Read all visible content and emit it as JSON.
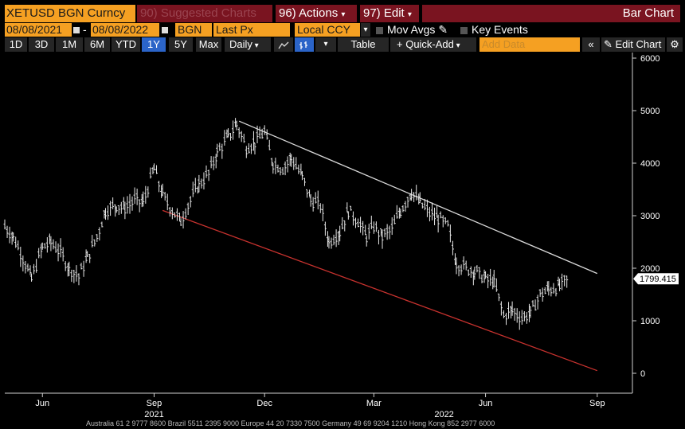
{
  "header": {
    "security": "XETUSD BGN Curncy",
    "suggested": "90) Suggested Charts",
    "actions": "96) Actions",
    "edit": "97) Edit",
    "title": "Bar Chart"
  },
  "params": {
    "start_date": "08/08/2021",
    "end_date": "08/08/2022",
    "source": "BGN",
    "field": "Last Px",
    "currency": "Local CCY",
    "mov_avgs": "Mov Avgs",
    "key_events": "Key Events"
  },
  "toolbar": {
    "ranges": [
      "1D",
      "3D",
      "1M",
      "6M",
      "YTD",
      "1Y",
      "5Y",
      "Max"
    ],
    "selected_range": "1Y",
    "frequency": "Daily",
    "table": "Table",
    "quick_add": "+ Quick-Add",
    "add_data_placeholder": "Add Data",
    "edit_chart": "Edit Chart"
  },
  "footer": "Australia 61 2 9777 8600  Brazil 5511 2395 9000  Europe 44 20 7330 7500  Germany 49 69 9204 1210  Hong Kong 852 2977 6000",
  "colors": {
    "amber": "#f5a022",
    "maroon": "#7a1420",
    "upper_trend": "#d8d8d8",
    "lower_trend": "#c8322e"
  },
  "chart_data": {
    "type": "bar",
    "ylim": [
      0,
      6000
    ],
    "yticks": [
      0,
      1000,
      2000,
      3000,
      4000,
      5000,
      6000
    ],
    "xlabels": [
      "Jun",
      "Sep",
      "Dec",
      "Mar",
      "Jun",
      "Sep"
    ],
    "year_labels": [
      "2021",
      "2022"
    ],
    "last_value_label": "1799.415",
    "last_value": 1799.415,
    "trendlines": [
      {
        "from": [
          "2021-11-10",
          4800
        ],
        "to": [
          "2022-09-01",
          1900
        ]
      },
      {
        "from": [
          "2021-09-08",
          3100
        ],
        "to": [
          "2022-09-01",
          50
        ]
      }
    ],
    "series": [
      {
        "x": "2021-05-01",
        "y": 2800
      },
      {
        "x": "2021-05-08",
        "y": 2600
      },
      {
        "x": "2021-05-16",
        "y": 2200
      },
      {
        "x": "2021-05-23",
        "y": 1800
      },
      {
        "x": "2021-06-01",
        "y": 2400
      },
      {
        "x": "2021-06-08",
        "y": 2500
      },
      {
        "x": "2021-06-16",
        "y": 2300
      },
      {
        "x": "2021-06-23",
        "y": 2000
      },
      {
        "x": "2021-07-01",
        "y": 1850
      },
      {
        "x": "2021-07-08",
        "y": 2200
      },
      {
        "x": "2021-07-16",
        "y": 2600
      },
      {
        "x": "2021-07-23",
        "y": 3100
      },
      {
        "x": "2021-08-01",
        "y": 3200
      },
      {
        "x": "2021-08-08",
        "y": 3150
      },
      {
        "x": "2021-08-16",
        "y": 3300
      },
      {
        "x": "2021-08-23",
        "y": 3250
      },
      {
        "x": "2021-09-01",
        "y": 3900
      },
      {
        "x": "2021-09-08",
        "y": 3400
      },
      {
        "x": "2021-09-16",
        "y": 3100
      },
      {
        "x": "2021-09-23",
        "y": 2900
      },
      {
        "x": "2021-10-01",
        "y": 3300
      },
      {
        "x": "2021-10-08",
        "y": 3600
      },
      {
        "x": "2021-10-16",
        "y": 3800
      },
      {
        "x": "2021-10-23",
        "y": 4200
      },
      {
        "x": "2021-11-01",
        "y": 4500
      },
      {
        "x": "2021-11-08",
        "y": 4750
      },
      {
        "x": "2021-11-16",
        "y": 4300
      },
      {
        "x": "2021-11-23",
        "y": 4400
      },
      {
        "x": "2021-12-01",
        "y": 4600
      },
      {
        "x": "2021-12-08",
        "y": 4000
      },
      {
        "x": "2021-12-16",
        "y": 3900
      },
      {
        "x": "2021-12-23",
        "y": 4100
      },
      {
        "x": "2022-01-01",
        "y": 3750
      },
      {
        "x": "2022-01-08",
        "y": 3300
      },
      {
        "x": "2022-01-16",
        "y": 3200
      },
      {
        "x": "2022-01-23",
        "y": 2500
      },
      {
        "x": "2022-02-01",
        "y": 2700
      },
      {
        "x": "2022-02-08",
        "y": 3100
      },
      {
        "x": "2022-02-16",
        "y": 2900
      },
      {
        "x": "2022-02-23",
        "y": 2600
      },
      {
        "x": "2022-03-01",
        "y": 2800
      },
      {
        "x": "2022-03-08",
        "y": 2600
      },
      {
        "x": "2022-03-16",
        "y": 2750
      },
      {
        "x": "2022-03-23",
        "y": 3100
      },
      {
        "x": "2022-04-01",
        "y": 3450
      },
      {
        "x": "2022-04-08",
        "y": 3250
      },
      {
        "x": "2022-04-16",
        "y": 3050
      },
      {
        "x": "2022-04-23",
        "y": 2950
      },
      {
        "x": "2022-05-01",
        "y": 2800
      },
      {
        "x": "2022-05-08",
        "y": 2100
      },
      {
        "x": "2022-05-16",
        "y": 2000
      },
      {
        "x": "2022-05-23",
        "y": 1950
      },
      {
        "x": "2022-06-01",
        "y": 1800
      },
      {
        "x": "2022-06-08",
        "y": 1750
      },
      {
        "x": "2022-06-16",
        "y": 1100
      },
      {
        "x": "2022-06-23",
        "y": 1200
      },
      {
        "x": "2022-07-01",
        "y": 1050
      },
      {
        "x": "2022-07-08",
        "y": 1150
      },
      {
        "x": "2022-07-16",
        "y": 1500
      },
      {
        "x": "2022-07-23",
        "y": 1600
      },
      {
        "x": "2022-08-01",
        "y": 1650
      },
      {
        "x": "2022-08-08",
        "y": 1799
      }
    ]
  }
}
